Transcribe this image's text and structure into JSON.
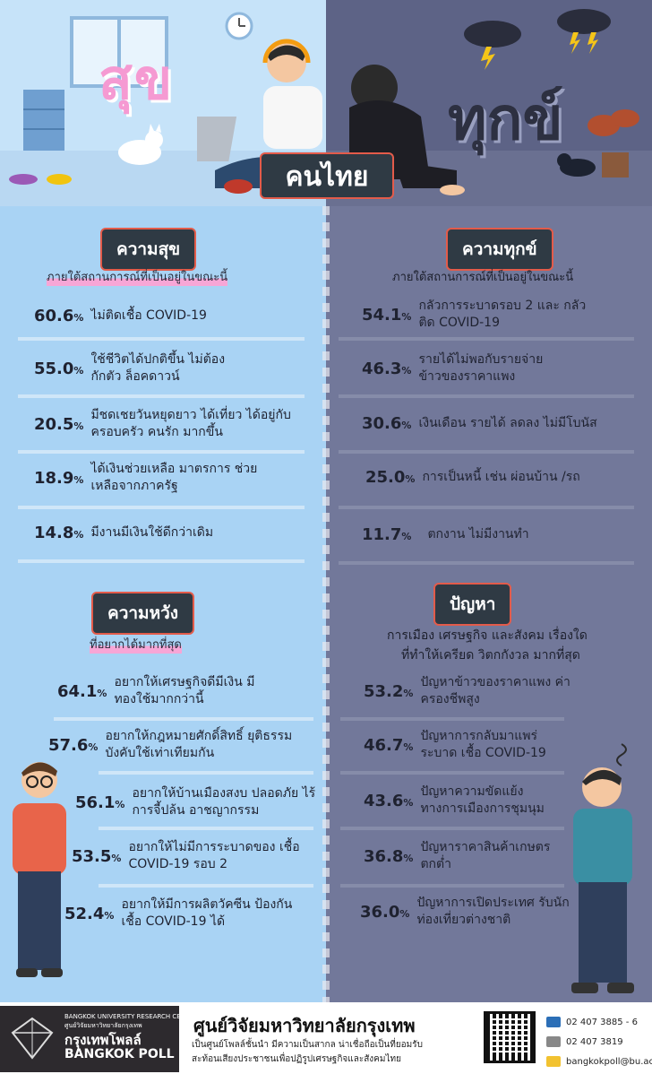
{
  "header": {
    "title_happy": "สุข",
    "title_sad": "ทุกข์",
    "center": "คนไทย"
  },
  "happiness": {
    "title": "ความสุข",
    "subtitle": "ภายใต้สถานการณ์ที่เป็นอยู่ในขณะนี้",
    "items": [
      {
        "pct": "60.6",
        "text": "ไม่ติดเชื้อ COVID-19"
      },
      {
        "pct": "55.0",
        "text": "ใช้ชีวิตได้ปกติขึ้น ไม่ต้อง กักตัว ล็อคดาวน์"
      },
      {
        "pct": "20.5",
        "text": "มีชดเชยวันหยุดยาว ได้เที่ยว ได้อยู่กับครอบครัว คนรัก มากขึ้น"
      },
      {
        "pct": "18.9",
        "text": "ได้เงินช่วยเหลือ มาตรการ ช่วยเหลือจากภาครัฐ"
      },
      {
        "pct": "14.8",
        "text": "มีงานมีเงินใช้ดีกว่าเดิม"
      }
    ]
  },
  "suffering": {
    "title": "ความทุกข์",
    "subtitle": "ภายใต้สถานการณ์ที่เป็นอยู่ในขณะนี้",
    "items": [
      {
        "pct": "54.1",
        "text": "กลัวการระบาดรอบ 2 และ กลัวติด COVID-19"
      },
      {
        "pct": "46.3",
        "text": "รายได้ไม่พอกับรายจ่าย ข้าวของราคาแพง"
      },
      {
        "pct": "30.6",
        "text": "เงินเดือน รายได้ ลดลง ไม่มีโบนัส"
      },
      {
        "pct": "25.0",
        "text": "การเป็นหนี้ เช่น ผ่อนบ้าน /รถ"
      },
      {
        "pct": "11.7",
        "text": "ตกงาน ไม่มีงานทำ"
      }
    ]
  },
  "hope": {
    "title": "ความหวัง",
    "subtitle": "ที่อยากได้มากที่สุด",
    "items": [
      {
        "pct": "64.1",
        "text": "อยากให้เศรษฐกิจดีมีเงิน มีทองใช้มากกว่านี้"
      },
      {
        "pct": "57.6",
        "text": "อยากให้กฎหมายศักดิ์สิทธิ์ ยุติธรรม บังคับใช้เท่าเทียมกัน"
      },
      {
        "pct": "56.1",
        "text": "อยากให้บ้านเมืองสงบ ปลอดภัย ไร้การจี้ปล้น อาชญากรรม"
      },
      {
        "pct": "53.5",
        "text": "อยากให้ไม่มีการระบาดของ เชื้อ COVID-19 รอบ 2"
      },
      {
        "pct": "52.4",
        "text": "อยากให้มีการผลิตวัคซีน ป้องกันเชื้อ COVID-19 ได้"
      }
    ]
  },
  "problems": {
    "title": "ปัญหา",
    "subtitle1": "การเมือง เศรษฐกิจ และสังคม เรื่องใด",
    "subtitle2": "ที่ทำให้เครียด วิตกกังวล มากที่สุด",
    "items": [
      {
        "pct": "53.2",
        "text": "ปัญหาข้าวของราคาแพง ค่าครองชีพสูง"
      },
      {
        "pct": "46.7",
        "text": "ปัญหาการกลับมาแพร่ระบาด เชื้อ COVID-19"
      },
      {
        "pct": "43.6",
        "text": "ปัญหาความขัดแย้ง ทางการเมืองการชุมนุม"
      },
      {
        "pct": "36.8",
        "text": "ปัญหาราคาสินค้าเกษตร ตกต่ำ"
      },
      {
        "pct": "36.0",
        "text": "ปัญหาการเปิดประเทศ รับนักท่องเที่ยวต่างชาติ"
      }
    ]
  },
  "pct_sign": "%",
  "footer": {
    "logo_small1": "BANGKOK UNIVERSITY RESEARCH CENTER",
    "logo_small2": "ศูนย์วิจัยมหาวิทยาลัยกรุงเทพ",
    "logo_thai": "กรุงเทพโพลล์",
    "logo_en": "BANGKOK POLL",
    "title": "ศูนย์วิจัยมหาวิทยาลัยกรุงเทพ",
    "line1": "เป็นศูนย์โพลล์ชั้นนำ มีความเป็นสากล น่าเชื่อถือเป็นที่ยอมรับ",
    "line2": "สะท้อนเสียงประชาชนเพื่อปฏิรูปเศรษฐกิจและสังคมไทย",
    "phone": "02 407 3885 - 6",
    "fax": "02 407 3819",
    "email": "bangkokpoll@bu.ac.th"
  },
  "colors": {
    "left_bg": "#a9d3f4",
    "right_bg": "#72789a",
    "badge": "#2f3a44",
    "accent_pink": "#f59ad2"
  }
}
